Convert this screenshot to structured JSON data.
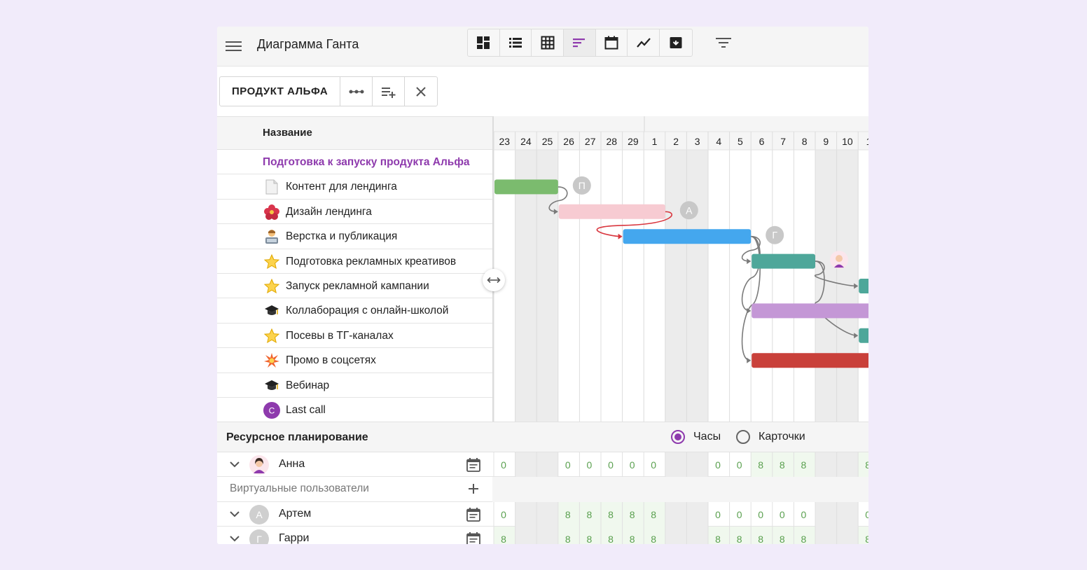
{
  "header": {
    "title": "Диаграмма Ганта",
    "views": [
      "dashboard-icon",
      "list-icon",
      "table-icon",
      "gantt-icon",
      "calendar-icon",
      "chart-icon",
      "archive-icon"
    ],
    "active_view": 3
  },
  "toolbar": {
    "project_name": "ПРОДУКТ АЛЬФА"
  },
  "table": {
    "name_header": "Название",
    "group": "Подготовка к запуску продукта Альфа",
    "tasks": [
      {
        "icon": "document-icon",
        "glyph": "📄",
        "label": "Контент для лендинга"
      },
      {
        "icon": "flower-icon",
        "glyph": "🌺",
        "label": "Дизайн лендинга"
      },
      {
        "icon": "developer-icon",
        "glyph": "👨‍💻",
        "label": "Верстка и публикация"
      },
      {
        "icon": "star-icon",
        "glyph": "⭐",
        "label": "Подготовка рекламных креативов"
      },
      {
        "icon": "star-icon",
        "glyph": "⭐",
        "label": "Запуск рекламной кампании"
      },
      {
        "icon": "graduation-cap-icon",
        "glyph": "🎓",
        "label": "Коллаборация с онлайн-школой"
      },
      {
        "icon": "star-icon",
        "glyph": "⭐",
        "label": "Посевы в ТГ-каналах"
      },
      {
        "icon": "explosion-icon",
        "glyph": "💥",
        "label": "Промо в соцсетях"
      },
      {
        "icon": "graduation-cap-icon",
        "glyph": "🎓",
        "label": "Вебинар"
      },
      {
        "icon": "avatar-c-icon",
        "glyph": "C",
        "label": "Last call"
      }
    ]
  },
  "gantt": {
    "days": [
      "23",
      "24",
      "25",
      "26",
      "27",
      "28",
      "29",
      "1",
      "2",
      "3",
      "4",
      "5",
      "6",
      "7",
      "8",
      "9",
      "10",
      "1"
    ],
    "weekend_days": [
      1,
      2,
      8,
      9,
      15,
      16
    ],
    "bars": [
      {
        "row": 1,
        "start": 0,
        "end": 3,
        "color": "#7bbb6e",
        "assignee": "П"
      },
      {
        "row": 2,
        "start": 3,
        "end": 8,
        "color": "#f7cbd2",
        "assignee": "А"
      },
      {
        "row": 3,
        "start": 6,
        "end": 12,
        "color": "#44a7ee",
        "assignee": "Г"
      },
      {
        "row": 4,
        "start": 12,
        "end": 15,
        "color": "#4ea79a",
        "assignee": "avatar"
      },
      {
        "row": 5,
        "start": 17,
        "end": 18,
        "color": "#4ea79a"
      },
      {
        "row": 6,
        "start": 12,
        "end": 18,
        "color": "#c497d6"
      },
      {
        "row": 7,
        "start": 17,
        "end": 18,
        "color": "#4ea79a"
      },
      {
        "row": 8,
        "start": 12,
        "end": 18,
        "color": "#c9403a"
      }
    ]
  },
  "resources": {
    "title": "Ресурсное планирование",
    "mode_hours": "Часы",
    "mode_cards": "Карточки",
    "selected_mode": "hours",
    "virtual_users": "Виртуальные пользователи",
    "people": [
      {
        "name": "Анна",
        "avatar": "",
        "cells": [
          "0",
          "",
          "",
          "0",
          "0",
          "0",
          "0",
          "0",
          "",
          "",
          "0",
          "0",
          "8",
          "8",
          "8",
          "",
          "",
          "8"
        ]
      },
      {
        "name": "Артем",
        "avatar": "А",
        "cells": [
          "0",
          "",
          "",
          "8",
          "8",
          "8",
          "8",
          "8",
          "",
          "",
          "0",
          "0",
          "0",
          "0",
          "0",
          "",
          "",
          "0"
        ]
      },
      {
        "name": "Гарри",
        "avatar": "Г",
        "cells": [
          "8",
          "",
          "",
          "8",
          "8",
          "8",
          "8",
          "8",
          "",
          "",
          "8",
          "8",
          "8",
          "8",
          "8",
          "",
          "",
          "8"
        ]
      }
    ]
  }
}
